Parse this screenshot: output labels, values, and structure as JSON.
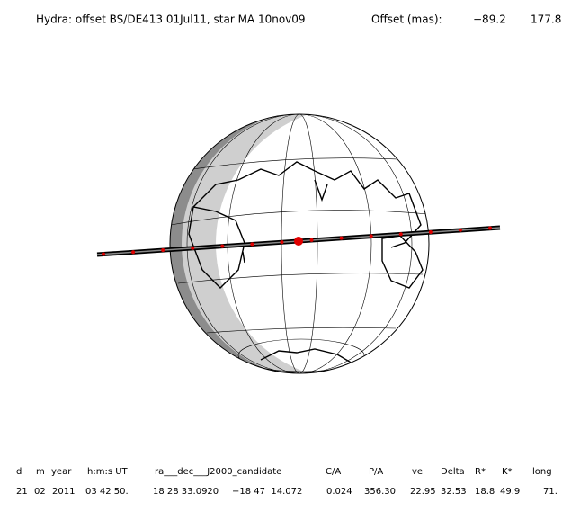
{
  "header": {
    "title": "Hydra: offset BS/DE413 01Jul11, star MA 10nov09",
    "offset_label": "Offset (mas):",
    "offset_values": [
      "−89.2",
      "177.8"
    ]
  },
  "table": {
    "columns": [
      "d",
      "m",
      "year",
      "h:m:s UT",
      "ra___dec___J2000_candidate",
      "C/A",
      "P/A",
      "vel",
      "Delta",
      "R*",
      "K*",
      "long"
    ],
    "rows": [
      [
        "21",
        "02",
        "2011",
        "03 42 50.",
        "18 28 33.0920",
        "−18 47  14.072",
        "0.024",
        "356.30",
        "22.95",
        "32.53",
        "18.8",
        "49.9",
        "71."
      ]
    ]
  }
}
